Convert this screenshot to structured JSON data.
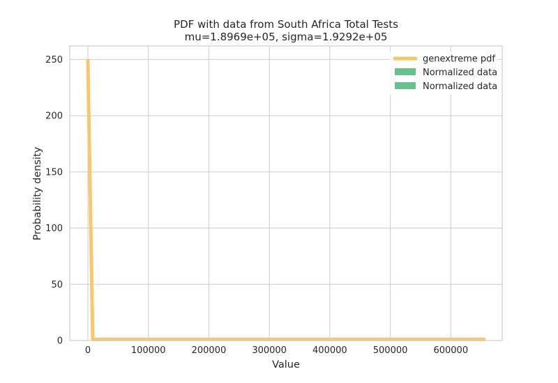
{
  "chart_data": {
    "type": "line",
    "title": "PDF with data from South Africa Total Tests",
    "subtitle": "mu=1.8969e+05, sigma=1.9292e+05",
    "xlabel": "Value",
    "ylabel": "Probability density",
    "xlim": [
      -30000,
      685000
    ],
    "ylim": [
      0,
      262
    ],
    "xticks": [
      0,
      100000,
      200000,
      300000,
      400000,
      500000,
      600000
    ],
    "xtick_labels": [
      "0",
      "100000",
      "200000",
      "300000",
      "400000",
      "500000",
      "600000"
    ],
    "yticks": [
      0,
      50,
      100,
      150,
      200,
      250
    ],
    "ytick_labels": [
      "0",
      "50",
      "100",
      "150",
      "200",
      "250"
    ],
    "grid": true,
    "legend_position": "top-right",
    "series": [
      {
        "name": "genextreme pdf",
        "kind": "line",
        "color": "#F9C464",
        "x": [
          0,
          8000,
          20000,
          100000,
          200000,
          300000,
          400000,
          500000,
          600000,
          655000
        ],
        "y": [
          249,
          1,
          1,
          1,
          1,
          1,
          1,
          1,
          1,
          1
        ]
      },
      {
        "name": "Normalized data",
        "kind": "histogram",
        "color": "#66C18C",
        "values": []
      },
      {
        "name": "Normalized data",
        "kind": "histogram",
        "color": "#66C18C",
        "values": []
      }
    ],
    "colors": {
      "grid": "#cccccc",
      "frame": "#cccccc",
      "text": "#262626"
    }
  }
}
